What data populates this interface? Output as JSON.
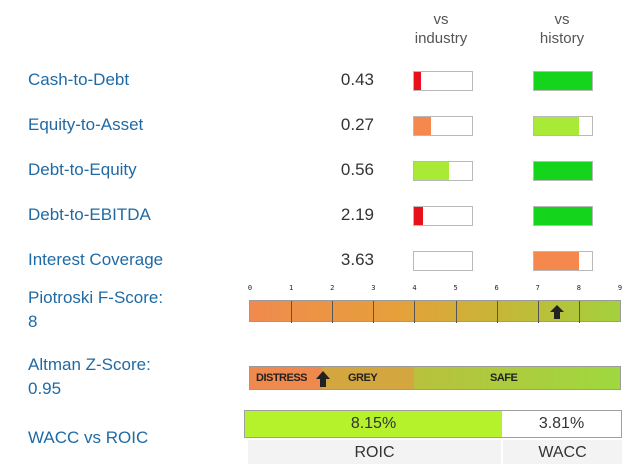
{
  "headers": {
    "vs_industry": "vs\nindustry",
    "vs_industry_l1": "vs",
    "vs_industry_l2": "industry",
    "vs_history_l1": "vs",
    "vs_history_l2": "history"
  },
  "metrics": [
    {
      "label": "Cash-to-Debt",
      "value": "0.43",
      "industry": {
        "fill": 0.12,
        "color": "#e8111b"
      },
      "history": {
        "fill": 1.0,
        "color": "#14d41c"
      }
    },
    {
      "label": "Equity-to-Asset",
      "value": "0.27",
      "industry": {
        "fill": 0.3,
        "color": "#f5884d"
      },
      "history": {
        "fill": 0.78,
        "color": "#a8ea35"
      }
    },
    {
      "label": "Debt-to-Equity",
      "value": "0.56",
      "industry": {
        "fill": 0.6,
        "color": "#a8ea35"
      },
      "history": {
        "fill": 1.0,
        "color": "#14d41c"
      }
    },
    {
      "label": "Debt-to-EBITDA",
      "value": "2.19",
      "industry": {
        "fill": 0.15,
        "color": "#e8111b"
      },
      "history": {
        "fill": 1.0,
        "color": "#14d41c"
      }
    },
    {
      "label": "Interest Coverage",
      "value": "3.63",
      "industry": {
        "fill": 0.0,
        "color": "#ffffff"
      },
      "history": {
        "fill": 0.78,
        "color": "#f5884d"
      }
    }
  ],
  "piotroski": {
    "label_line1": "Piotroski F-Score:",
    "value": "8",
    "scale": [
      "0",
      "1",
      "2",
      "3",
      "4",
      "5",
      "6",
      "7",
      "8",
      "9"
    ],
    "score": 8
  },
  "altman": {
    "label_line1": "Altman Z-Score:",
    "value": "0.95",
    "zones": {
      "distress": "DISTRESS",
      "grey": "GREY",
      "safe": "SAFE"
    },
    "score": 0.95
  },
  "wacc_roic": {
    "label": "WACC vs ROIC",
    "roic_value": "8.15%",
    "wacc_value": "3.81%",
    "roic_label": "ROIC",
    "wacc_label": "WACC"
  }
}
